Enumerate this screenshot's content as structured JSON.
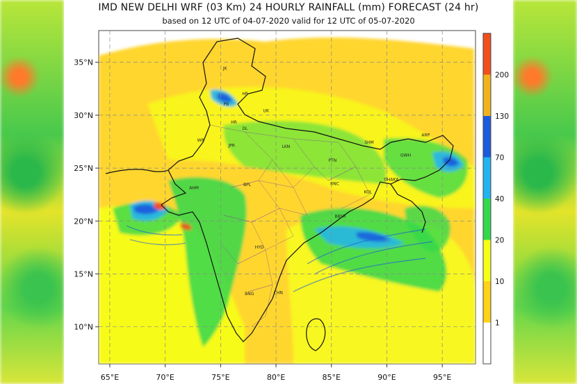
{
  "title": "IMD NEW DELHI  WRF (03 Km) 24 HOURLY RAINFALL (mm) FORECAST  (24 hr)",
  "subtitle": "based on 12 UTC of 04-07-2020 valid for 12 UTC of 05-07-2020",
  "map": {
    "lon_range": [
      64,
      98
    ],
    "lat_range": [
      6.5,
      38
    ],
    "lon_ticks": [
      "65°E",
      "70°E",
      "75°E",
      "80°E",
      "85°E",
      "90°E",
      "95°E"
    ],
    "lat_ticks": [
      "10°N",
      "15°N",
      "20°N",
      "25°N",
      "30°N",
      "35°N"
    ],
    "lon_tick_values": [
      65,
      70,
      75,
      80,
      85,
      90,
      95
    ],
    "lat_tick_values": [
      10,
      15,
      20,
      25,
      30,
      35
    ],
    "grid": true,
    "region_labels": [
      {
        "text": "JK",
        "lon": 75.4,
        "lat": 34.3
      },
      {
        "text": "HP",
        "lon": 77.2,
        "lat": 31.9
      },
      {
        "text": "UK",
        "lon": 79.1,
        "lat": 30.3
      },
      {
        "text": "PB",
        "lon": 75.5,
        "lat": 30.9
      },
      {
        "text": "HR",
        "lon": 76.2,
        "lat": 29.2
      },
      {
        "text": "DL",
        "lon": 77.2,
        "lat": 28.6
      },
      {
        "text": "WR",
        "lon": 73.2,
        "lat": 27.5
      },
      {
        "text": "JPR",
        "lon": 76.0,
        "lat": 27.0
      },
      {
        "text": "LKN",
        "lon": 80.9,
        "lat": 26.9
      },
      {
        "text": "PTN",
        "lon": 85.1,
        "lat": 25.6
      },
      {
        "text": "SHM",
        "lon": 88.4,
        "lat": 27.3
      },
      {
        "text": "ARP",
        "lon": 93.5,
        "lat": 28.0
      },
      {
        "text": "GWH",
        "lon": 91.7,
        "lat": 26.1
      },
      {
        "text": "AHM",
        "lon": 72.6,
        "lat": 23.0
      },
      {
        "text": "BPL",
        "lon": 77.4,
        "lat": 23.3
      },
      {
        "text": "RNC",
        "lon": 85.3,
        "lat": 23.4
      },
      {
        "text": "KOL",
        "lon": 88.3,
        "lat": 22.6
      },
      {
        "text": "DHAKA",
        "lon": 90.4,
        "lat": 23.8
      },
      {
        "text": "BBSR",
        "lon": 85.8,
        "lat": 20.3
      },
      {
        "text": "HYD",
        "lon": 78.5,
        "lat": 17.4
      },
      {
        "text": "BNG",
        "lon": 77.6,
        "lat": 13.0
      },
      {
        "text": "CHN",
        "lon": 80.2,
        "lat": 13.1
      }
    ]
  },
  "colorbar": {
    "levels": [
      "1",
      "10",
      "20",
      "40",
      "70",
      "130",
      "200"
    ],
    "level_values": [
      1,
      10,
      20,
      40,
      70,
      130,
      200
    ],
    "colors": [
      "#ffffff",
      "#ffd21a",
      "#f6ff1a",
      "#34d84c",
      "#23b4f0",
      "#1c5bdc",
      "#f0b31e",
      "#f0501e"
    ]
  }
}
